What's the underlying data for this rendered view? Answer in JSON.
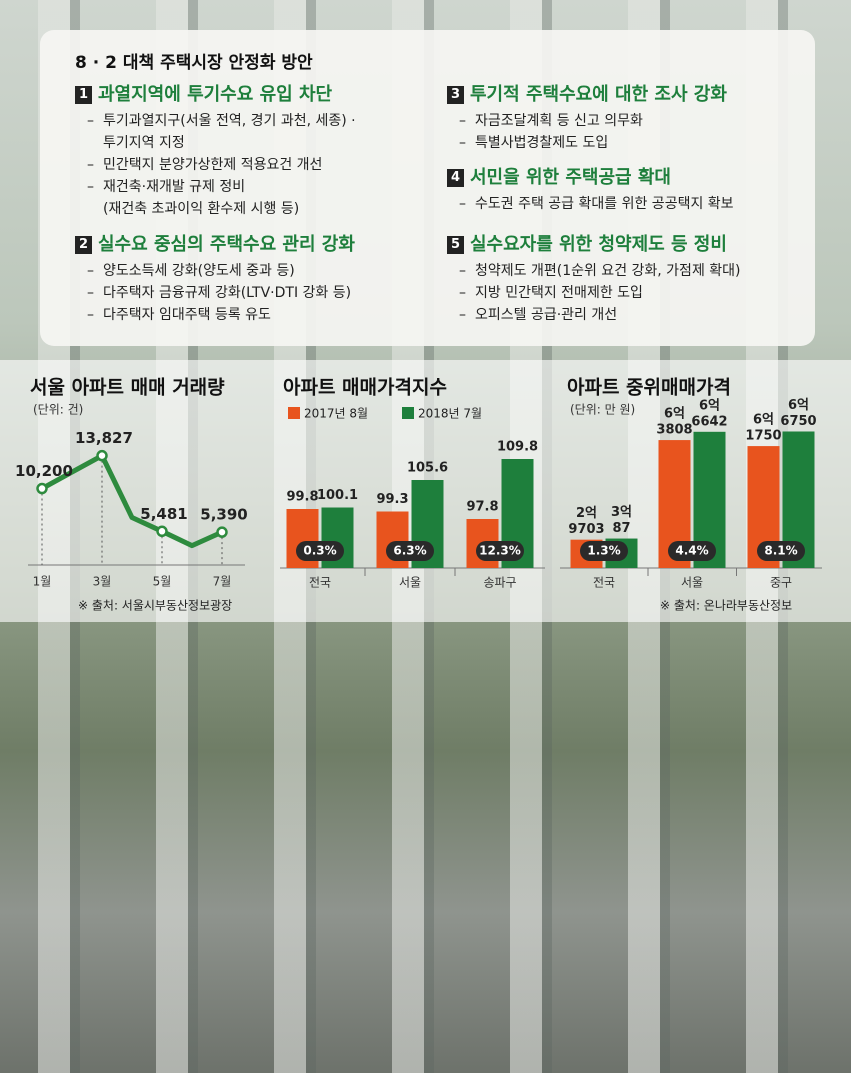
{
  "policy": {
    "title": "8 · 2 대책 주택시장 안정화 방안",
    "sections": [
      {
        "number": "1",
        "heading": "과열지역에 투기수요 유입 차단",
        "items": [
          [
            "투기과열지구(서울 전역, 경기 과천, 세종) ·",
            "투기지역 지정"
          ],
          [
            "민간택지 분양가상한제 적용요건 개선"
          ],
          [
            "재건축·재개발 규제 정비",
            "(재건축 초과이익 환수제 시행 등)"
          ]
        ]
      },
      {
        "number": "2",
        "heading": "실수요 중심의 주택수요 관리 강화",
        "items": [
          [
            "양도소득세 강화(양도세 중과 등)"
          ],
          [
            "다주택자 금융규제 강화(LTV·DTI 강화 등)"
          ],
          [
            "다주택자 임대주택 등록 유도"
          ]
        ]
      },
      {
        "number": "3",
        "heading": "투기적 주택수요에 대한 조사 강화",
        "items": [
          [
            "자금조달계획 등 신고 의무화"
          ],
          [
            "특별사법경찰제도 도입"
          ]
        ]
      },
      {
        "number": "4",
        "heading": "서민을 위한 주택공급 확대",
        "items": [
          [
            "수도권 주택 공급 확대를 위한 공공택지 확보"
          ]
        ]
      },
      {
        "number": "5",
        "heading": "실수요자를 위한 청약제도 등 정비",
        "items": [
          [
            "청약제도 개편(1순위 요건 강화, 가점제 확대)"
          ],
          [
            "지방 민간택지 전매제한 도입"
          ],
          [
            "오피스텔 공급·관리 개선"
          ]
        ]
      }
    ]
  },
  "chart_data": [
    {
      "type": "line",
      "title": "서울 아파트 매매 거래량",
      "subtitle": "(단위: 건)",
      "categories": [
        "1월",
        null,
        "3월",
        null,
        "5월",
        null,
        "7월"
      ],
      "values": [
        10200,
        12014,
        13827,
        7000,
        5481,
        3900,
        5390
      ],
      "value_labels": [
        "10,200",
        null,
        "13,827",
        null,
        "5,481",
        null,
        "5,390"
      ],
      "color": "#2e8b3e",
      "ylim": [
        0,
        15000
      ],
      "source": "※ 출처: 서울시부동산정보광장"
    },
    {
      "type": "bar",
      "title": "아파트 매매가격지수",
      "categories": [
        "전국",
        "서울",
        "송파구"
      ],
      "series": [
        {
          "name": "2017년 8월",
          "color": "#e8541e",
          "values": [
            99.8,
            99.3,
            97.8
          ]
        },
        {
          "name": "2018년 7월",
          "color": "#1e7f3c",
          "values": [
            100.1,
            105.6,
            109.8
          ]
        }
      ],
      "changes": [
        "0.3%",
        "6.3%",
        "12.3%"
      ],
      "ylim": [
        88,
        112
      ]
    },
    {
      "type": "bar",
      "title": "아파트 중위매매가격",
      "subtitle": "(단위: 만 원)",
      "categories": [
        "전국",
        "서울",
        "중구"
      ],
      "series": [
        {
          "color": "#e8541e",
          "values": [
            29703,
            63808,
            61750
          ],
          "value_labels": [
            [
              "2억",
              "9703"
            ],
            [
              "6억",
              "3808"
            ],
            [
              "6억",
              "1750"
            ]
          ]
        },
        {
          "color": "#1e7f3c",
          "values": [
            30087,
            66642,
            66750
          ],
          "value_labels": [
            [
              "3억",
              "87"
            ],
            [
              "6억",
              "6642"
            ],
            [
              "6억",
              "6750"
            ]
          ]
        }
      ],
      "changes": [
        "1.3%",
        "4.4%",
        "8.1%"
      ],
      "ylim": [
        20000,
        70000
      ],
      "source": "※ 출처: 온나라부동산정보"
    }
  ]
}
